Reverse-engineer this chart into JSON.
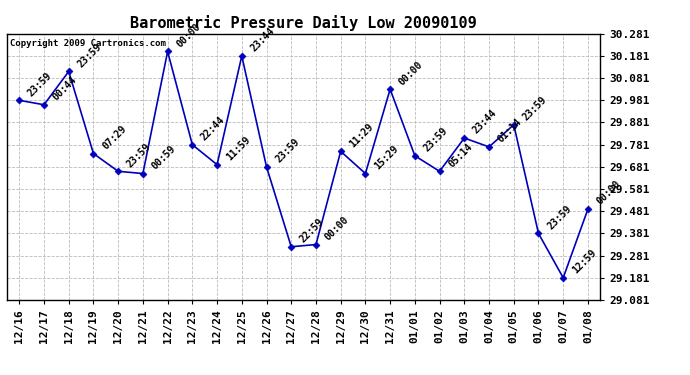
{
  "title": "Barometric Pressure Daily Low 20090109",
  "copyright": "Copyright 2009 Cartronics.com",
  "x_labels": [
    "12/16",
    "12/17",
    "12/18",
    "12/19",
    "12/20",
    "12/21",
    "12/22",
    "12/23",
    "12/24",
    "12/25",
    "12/26",
    "12/27",
    "12/28",
    "12/29",
    "12/30",
    "12/31",
    "01/01",
    "01/02",
    "01/03",
    "01/04",
    "01/05",
    "01/06",
    "01/07",
    "01/08"
  ],
  "y_values": [
    29.981,
    29.961,
    30.111,
    29.741,
    29.661,
    29.651,
    30.201,
    29.781,
    29.691,
    30.181,
    29.681,
    29.321,
    29.331,
    29.751,
    29.651,
    30.031,
    29.731,
    29.661,
    29.811,
    29.771,
    29.871,
    29.381,
    29.181,
    29.491
  ],
  "point_labels": [
    "23:59",
    "00:44",
    "23:59",
    "07:29",
    "23:59",
    "00:59",
    "00:00",
    "22:44",
    "11:59",
    "23:44",
    "23:59",
    "22:59",
    "00:00",
    "11:29",
    "15:29",
    "00:00",
    "23:59",
    "05:14",
    "23:44",
    "01:14",
    "23:59",
    "23:59",
    "12:59",
    "00:00"
  ],
  "line_color": "#0000bb",
  "marker_color": "#0000bb",
  "background_color": "#ffffff",
  "grid_color": "#bbbbbb",
  "title_fontsize": 11,
  "ylabel_fontsize": 8,
  "xlabel_fontsize": 8,
  "label_fontsize": 7,
  "ylim": [
    29.081,
    30.281
  ],
  "yticks": [
    29.081,
    29.181,
    29.281,
    29.381,
    29.481,
    29.581,
    29.681,
    29.781,
    29.881,
    29.981,
    30.081,
    30.181,
    30.281
  ]
}
